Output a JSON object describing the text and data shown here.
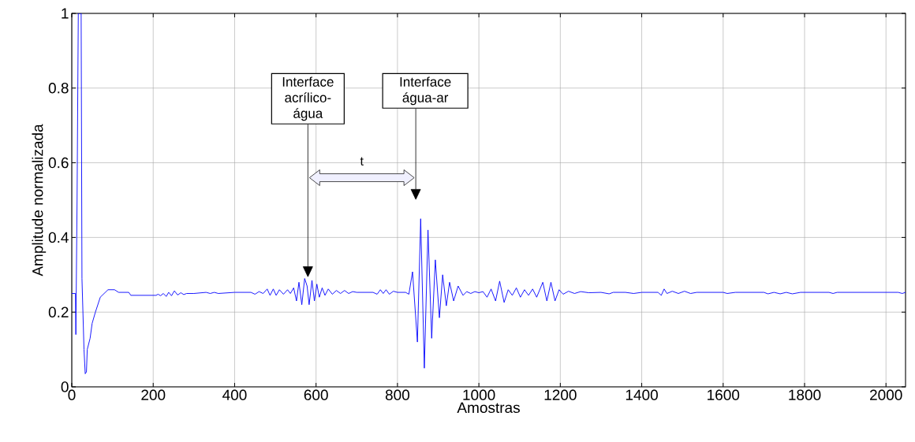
{
  "chart_data": {
    "type": "line",
    "xlabel": "Amostras",
    "ylabel": "Amplitude normalizada",
    "xlim": [
      0,
      2048
    ],
    "ylim": [
      0,
      1
    ],
    "xticks": [
      0,
      200,
      400,
      600,
      800,
      1000,
      1200,
      1400,
      1600,
      1800,
      2000
    ],
    "yticks": [
      0,
      0.2,
      0.4,
      0.6,
      0.8,
      1
    ],
    "grid": true,
    "line_style": "solid",
    "x": [
      0,
      9,
      10,
      13,
      16,
      23,
      25,
      30,
      33,
      36,
      38,
      45,
      50,
      58,
      70,
      89,
      105,
      115,
      140,
      145,
      207,
      212,
      218,
      225,
      232,
      238,
      245,
      252,
      260,
      268,
      275,
      282,
      300,
      330,
      340,
      350,
      360,
      400,
      440,
      450,
      460,
      470,
      480,
      487,
      495,
      502,
      510,
      520,
      530,
      537,
      545,
      552,
      558,
      565,
      572,
      578,
      583,
      590,
      596,
      602,
      608,
      615,
      622,
      630,
      640,
      650,
      660,
      670,
      680,
      690,
      700,
      740,
      750,
      758,
      765,
      772,
      780,
      790,
      800,
      820,
      828,
      837,
      849,
      857,
      866,
      875,
      884,
      893,
      903,
      911,
      920,
      928,
      938,
      949,
      961,
      970,
      980,
      990,
      1000,
      1010,
      1020,
      1030,
      1041,
      1051,
      1062,
      1072,
      1082,
      1092,
      1102,
      1112,
      1122,
      1132,
      1142,
      1157,
      1167,
      1177,
      1187,
      1197,
      1207,
      1220,
      1235,
      1250,
      1270,
      1300,
      1320,
      1330,
      1360,
      1380,
      1400,
      1440,
      1448,
      1455,
      1462,
      1475,
      1490,
      1505,
      1520,
      1535,
      1600,
      1610,
      1630,
      1700,
      1710,
      1725,
      1740,
      1755,
      1770,
      1790,
      1860,
      1870,
      1880,
      2030,
      2040,
      2048
    ],
    "series": [
      {
        "color": "#0000ff",
        "values": [
          0.25,
          0.25,
          0.14,
          0.5,
          1,
          1,
          0.29,
          0.1,
          0.035,
          0.04,
          0.1,
          0.13,
          0.17,
          0.2,
          0.24,
          0.26,
          0.26,
          0.253,
          0.253,
          0.245,
          0.245,
          0.248,
          0.244,
          0.25,
          0.242,
          0.253,
          0.244,
          0.257,
          0.246,
          0.252,
          0.247,
          0.25,
          0.25,
          0.253,
          0.25,
          0.253,
          0.25,
          0.253,
          0.253,
          0.248,
          0.255,
          0.25,
          0.262,
          0.245,
          0.262,
          0.245,
          0.26,
          0.248,
          0.26,
          0.25,
          0.265,
          0.23,
          0.28,
          0.22,
          0.29,
          0.27,
          0.22,
          0.285,
          0.23,
          0.275,
          0.24,
          0.265,
          0.245,
          0.262,
          0.248,
          0.258,
          0.25,
          0.258,
          0.25,
          0.255,
          0.253,
          0.253,
          0.248,
          0.26,
          0.25,
          0.26,
          0.248,
          0.256,
          0.253,
          0.253,
          0.248,
          0.308,
          0.12,
          0.45,
          0.05,
          0.42,
          0.13,
          0.34,
          0.185,
          0.3,
          0.217,
          0.28,
          0.23,
          0.27,
          0.245,
          0.255,
          0.25,
          0.255,
          0.252,
          0.255,
          0.24,
          0.262,
          0.23,
          0.283,
          0.226,
          0.26,
          0.245,
          0.265,
          0.24,
          0.26,
          0.245,
          0.262,
          0.24,
          0.28,
          0.23,
          0.28,
          0.23,
          0.26,
          0.248,
          0.256,
          0.25,
          0.255,
          0.252,
          0.253,
          0.249,
          0.253,
          0.253,
          0.25,
          0.253,
          0.253,
          0.245,
          0.262,
          0.25,
          0.256,
          0.25,
          0.256,
          0.25,
          0.253,
          0.253,
          0.25,
          0.253,
          0.253,
          0.249,
          0.253,
          0.249,
          0.253,
          0.249,
          0.253,
          0.253,
          0.25,
          0.253,
          0.253,
          0.25,
          0.253
        ]
      }
    ],
    "annotations": [
      "Interface acrílico-água",
      "Interface água-ar",
      "t"
    ]
  }
}
